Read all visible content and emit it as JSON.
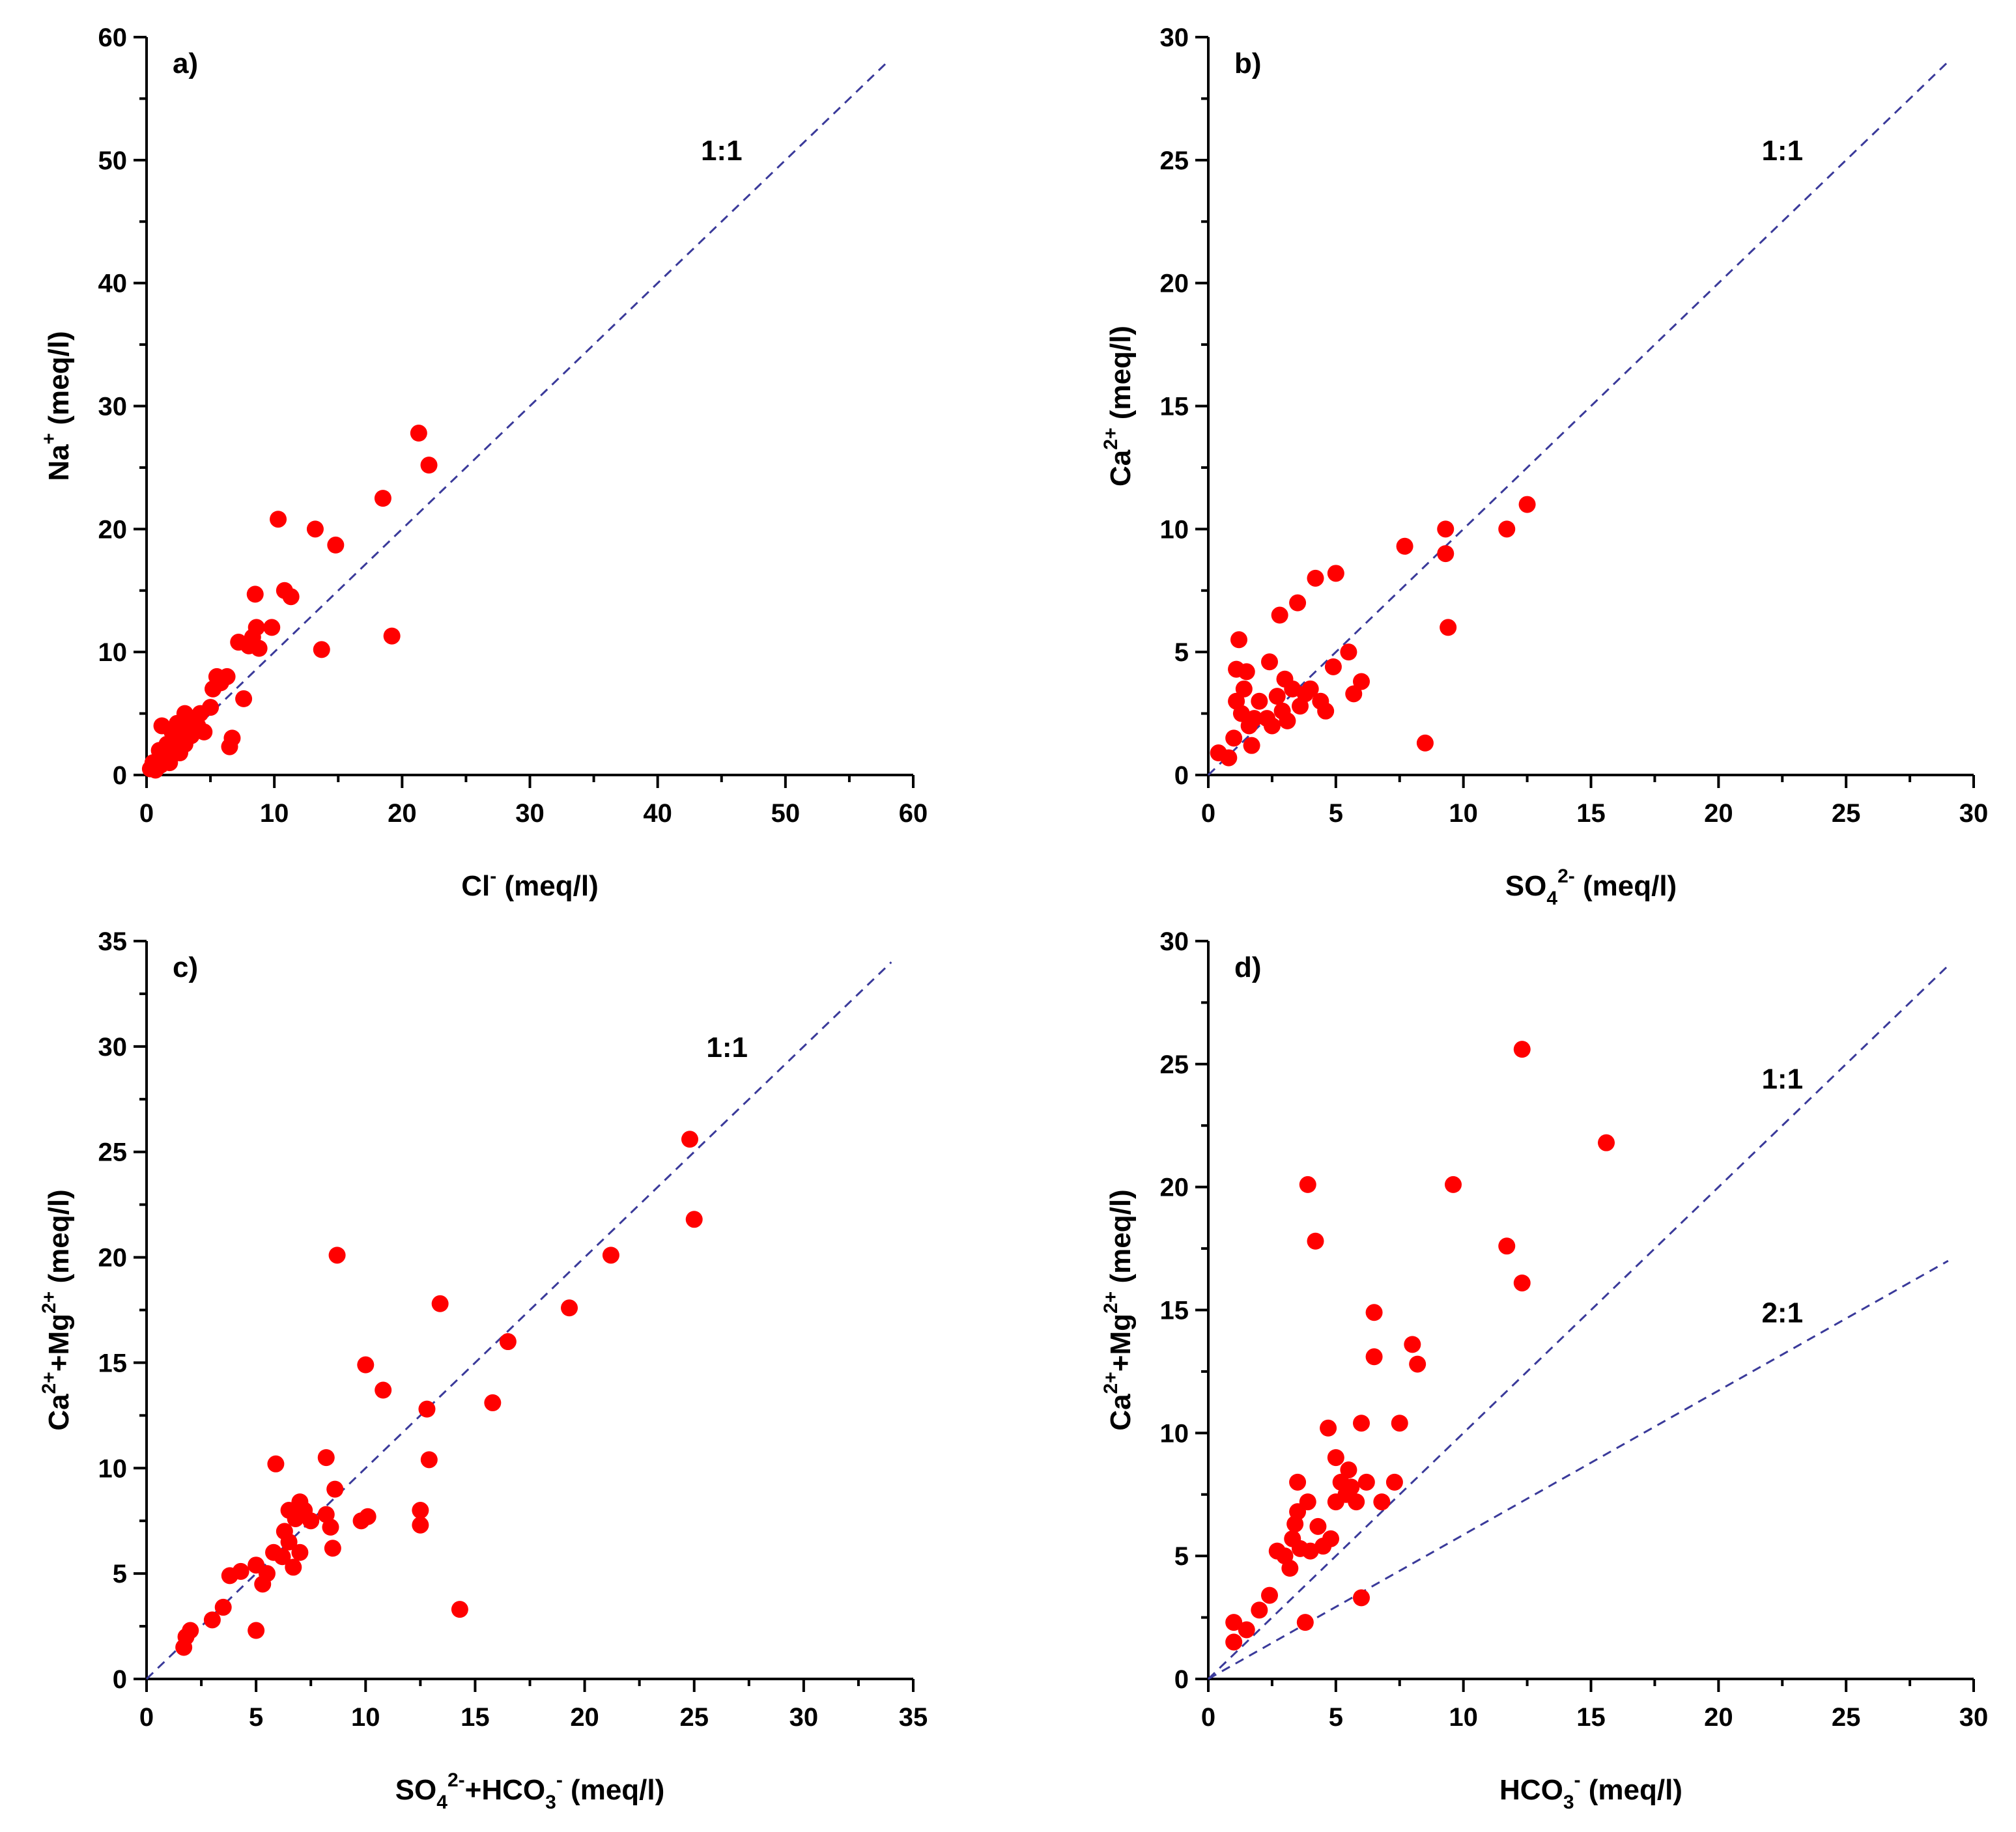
{
  "colors": {
    "point": "#ff0000",
    "ref_line": "#3a3a9a",
    "axis": "#000000"
  },
  "chart_data": [
    {
      "type": "scatter",
      "panel_label": "a)",
      "xlabel": {
        "main": "Cl",
        "sup": "-",
        "unit": " (meq/l)"
      },
      "ylabel": {
        "main": "Na",
        "sup": "+",
        "unit": " (meq/l)"
      },
      "xlim": [
        0,
        60
      ],
      "ylim": [
        0,
        60
      ],
      "xticks": [
        0,
        10,
        20,
        30,
        40,
        50,
        60
      ],
      "yticks": [
        0,
        10,
        20,
        30,
        40,
        50,
        60
      ],
      "ref_lines": [
        {
          "label": "1:1",
          "slope": 1,
          "x_end": 58,
          "label_x": 45,
          "label_y": 50
        }
      ],
      "points": [
        [
          0.3,
          0.5
        ],
        [
          0.5,
          1
        ],
        [
          0.7,
          0.4
        ],
        [
          0.9,
          1.2
        ],
        [
          1,
          2
        ],
        [
          1.1,
          0.8
        ],
        [
          1.2,
          4
        ],
        [
          1.4,
          1.5
        ],
        [
          1.6,
          2.5
        ],
        [
          1.8,
          1
        ],
        [
          2,
          3.5
        ],
        [
          2.1,
          2
        ],
        [
          2.3,
          3
        ],
        [
          2.4,
          4.2
        ],
        [
          2.6,
          1.8
        ],
        [
          2.8,
          3.8
        ],
        [
          3,
          2.5
        ],
        [
          3,
          5
        ],
        [
          3.3,
          4
        ],
        [
          3.5,
          3.2
        ],
        [
          3.8,
          4.5
        ],
        [
          4,
          4
        ],
        [
          4.2,
          5
        ],
        [
          4.5,
          3.5
        ],
        [
          5,
          5.5
        ],
        [
          5.2,
          7
        ],
        [
          5.5,
          8
        ],
        [
          5.8,
          7.5
        ],
        [
          6.3,
          8
        ],
        [
          6.5,
          2.3
        ],
        [
          6.7,
          3
        ],
        [
          7.2,
          10.8
        ],
        [
          7.6,
          6.2
        ],
        [
          8,
          10.5
        ],
        [
          8.3,
          11.2
        ],
        [
          8.5,
          14.7
        ],
        [
          8.6,
          12
        ],
        [
          8.8,
          10.3
        ],
        [
          9.8,
          12
        ],
        [
          10.3,
          20.8
        ],
        [
          10.8,
          15
        ],
        [
          11.3,
          14.5
        ],
        [
          13.2,
          20
        ],
        [
          13.7,
          10.2
        ],
        [
          14.8,
          18.7
        ],
        [
          18.5,
          22.5
        ],
        [
          19.2,
          11.3
        ],
        [
          21.3,
          27.8
        ],
        [
          22.1,
          25.2
        ]
      ]
    },
    {
      "type": "scatter",
      "panel_label": "b)",
      "xlabel": {
        "main": "SO",
        "sub": "4",
        "sup": "2-",
        "unit": " (meq/l)"
      },
      "ylabel": {
        "main": "Ca",
        "sup": "2+",
        "unit": " (meq/l)"
      },
      "xlim": [
        0,
        30
      ],
      "ylim": [
        0,
        30
      ],
      "xticks": [
        0,
        5,
        10,
        15,
        20,
        25,
        30
      ],
      "yticks": [
        0,
        5,
        10,
        15,
        20,
        25,
        30
      ],
      "ref_lines": [
        {
          "label": "1:1",
          "slope": 1,
          "x_end": 29,
          "label_x": 22.5,
          "label_y": 25
        }
      ],
      "points": [
        [
          0.4,
          0.9
        ],
        [
          0.8,
          0.7
        ],
        [
          1,
          1.5
        ],
        [
          1.1,
          3
        ],
        [
          1.1,
          4.3
        ],
        [
          1.2,
          5.5
        ],
        [
          1.3,
          2.5
        ],
        [
          1.4,
          3.5
        ],
        [
          1.5,
          4.2
        ],
        [
          1.6,
          2
        ],
        [
          1.7,
          1.2
        ],
        [
          1.8,
          2.3
        ],
        [
          2,
          3
        ],
        [
          2.3,
          2.3
        ],
        [
          2.4,
          4.6
        ],
        [
          2.5,
          2
        ],
        [
          2.7,
          3.2
        ],
        [
          2.8,
          6.5
        ],
        [
          2.9,
          2.6
        ],
        [
          3,
          3.9
        ],
        [
          3.1,
          2.2
        ],
        [
          3.3,
          3.5
        ],
        [
          3.5,
          7
        ],
        [
          3.6,
          2.8
        ],
        [
          3.8,
          3.3
        ],
        [
          4,
          3.5
        ],
        [
          4.2,
          8
        ],
        [
          4.4,
          3
        ],
        [
          4.6,
          2.6
        ],
        [
          4.9,
          4.4
        ],
        [
          5,
          8.2
        ],
        [
          5.5,
          5
        ],
        [
          5.7,
          3.3
        ],
        [
          6,
          3.8
        ],
        [
          7.7,
          9.3
        ],
        [
          8.5,
          1.3
        ],
        [
          9.3,
          10
        ],
        [
          9.3,
          9
        ],
        [
          9.4,
          6
        ],
        [
          11.7,
          10
        ],
        [
          12.5,
          11
        ]
      ]
    },
    {
      "type": "scatter",
      "panel_label": "c)",
      "xlabel": {
        "main": "SO",
        "sub": "4",
        "sup": "2-",
        "tail_main": "+HCO",
        "tail_sub": "3",
        "tail_sup": "-",
        "unit": " (meq/l)"
      },
      "ylabel": {
        "main": "Ca",
        "sup": "2+",
        "tail_main": "+Mg",
        "tail_sup": "2+",
        "unit": " (meq/l)"
      },
      "xlim": [
        0,
        35
      ],
      "ylim": [
        0,
        35
      ],
      "xticks": [
        0,
        5,
        10,
        15,
        20,
        25,
        30,
        35
      ],
      "yticks": [
        0,
        5,
        10,
        15,
        20,
        25,
        30,
        35
      ],
      "ref_lines": [
        {
          "label": "1:1",
          "slope": 1,
          "x_end": 34,
          "label_x": 26.5,
          "label_y": 29.5
        }
      ],
      "points": [
        [
          1.7,
          1.5
        ],
        [
          1.8,
          2
        ],
        [
          2,
          2.3
        ],
        [
          3,
          2.8
        ],
        [
          3.5,
          3.4
        ],
        [
          3.8,
          4.9
        ],
        [
          4.3,
          5.1
        ],
        [
          5,
          2.3
        ],
        [
          5,
          5.4
        ],
        [
          5.3,
          4.5
        ],
        [
          5.5,
          5
        ],
        [
          5.8,
          6
        ],
        [
          5.9,
          10.2
        ],
        [
          6.2,
          5.8
        ],
        [
          6.3,
          7
        ],
        [
          6.5,
          8
        ],
        [
          6.5,
          6.5
        ],
        [
          6.7,
          5.3
        ],
        [
          6.8,
          7.6
        ],
        [
          7,
          8.4
        ],
        [
          7,
          6
        ],
        [
          7.2,
          8
        ],
        [
          7.5,
          7.5
        ],
        [
          8.2,
          7.8
        ],
        [
          8.2,
          10.5
        ],
        [
          8.4,
          7.2
        ],
        [
          8.5,
          6.2
        ],
        [
          8.6,
          9
        ],
        [
          8.7,
          20.1
        ],
        [
          9.8,
          7.5
        ],
        [
          10,
          14.9
        ],
        [
          10.1,
          7.7
        ],
        [
          10.8,
          13.7
        ],
        [
          12.5,
          8
        ],
        [
          12.5,
          7.3
        ],
        [
          12.8,
          12.8
        ],
        [
          12.9,
          10.4
        ],
        [
          13.4,
          17.8
        ],
        [
          14.3,
          3.3
        ],
        [
          15.8,
          13.1
        ],
        [
          16.5,
          16
        ],
        [
          19.3,
          17.6
        ],
        [
          21.2,
          20.1
        ],
        [
          24.8,
          25.6
        ],
        [
          25,
          21.8
        ]
      ]
    },
    {
      "type": "scatter",
      "panel_label": "d)",
      "xlabel": {
        "main": "HCO",
        "sub": "3",
        "sup": "-",
        "unit": " (meq/l)"
      },
      "ylabel": {
        "main": "Ca",
        "sup": "2+",
        "tail_main": "+Mg",
        "tail_sup": "2+",
        "unit": " (meq/l)"
      },
      "xlim": [
        0,
        30
      ],
      "ylim": [
        0,
        30
      ],
      "xticks": [
        0,
        5,
        10,
        15,
        20,
        25,
        30
      ],
      "yticks": [
        0,
        5,
        10,
        15,
        20,
        25,
        30
      ],
      "ref_lines": [
        {
          "label": "1:1",
          "slope": 1,
          "x_end": 29,
          "label_x": 22.5,
          "label_y": 24
        },
        {
          "label": "2:1",
          "slope": 0.5862,
          "x_end": 29,
          "label_x": 22.5,
          "label_y": 14.5
        }
      ],
      "points": [
        [
          1,
          1.5
        ],
        [
          1,
          2.3
        ],
        [
          1.5,
          2
        ],
        [
          2,
          2.8
        ],
        [
          2.4,
          3.4
        ],
        [
          2.7,
          5.2
        ],
        [
          3,
          5
        ],
        [
          3.2,
          4.5
        ],
        [
          3.3,
          5.7
        ],
        [
          3.4,
          6.3
        ],
        [
          3.5,
          8
        ],
        [
          3.5,
          6.8
        ],
        [
          3.6,
          5.3
        ],
        [
          3.8,
          2.3
        ],
        [
          3.9,
          7.2
        ],
        [
          3.9,
          20.1
        ],
        [
          4,
          5.2
        ],
        [
          4.2,
          17.8
        ],
        [
          4.3,
          6.2
        ],
        [
          4.5,
          5.4
        ],
        [
          4.7,
          10.2
        ],
        [
          4.8,
          5.7
        ],
        [
          5,
          9
        ],
        [
          5,
          7.2
        ],
        [
          5.2,
          8
        ],
        [
          5.4,
          7.5
        ],
        [
          5.5,
          8.5
        ],
        [
          5.6,
          7.8
        ],
        [
          5.8,
          7.2
        ],
        [
          6,
          3.3
        ],
        [
          6,
          10.4
        ],
        [
          6.2,
          8
        ],
        [
          6.5,
          14.9
        ],
        [
          6.5,
          13.1
        ],
        [
          6.8,
          7.2
        ],
        [
          7.3,
          8
        ],
        [
          7.5,
          10.4
        ],
        [
          8,
          13.6
        ],
        [
          8.2,
          12.8
        ],
        [
          9.6,
          20.1
        ],
        [
          11.7,
          17.6
        ],
        [
          12.3,
          25.6
        ],
        [
          12.3,
          16.1
        ],
        [
          15.6,
          21.8
        ]
      ]
    }
  ]
}
